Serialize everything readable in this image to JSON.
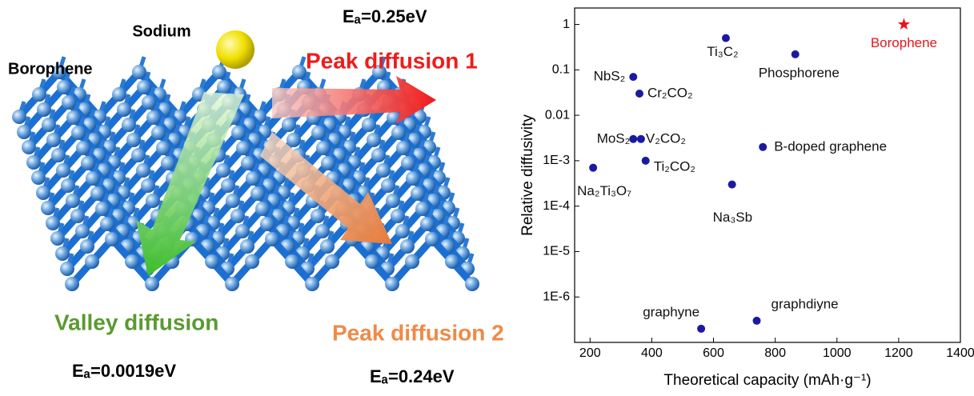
{
  "diagram": {
    "sodium": "Sodium",
    "borophene": "Borophene",
    "ea_peak1": "Eₐ=0.25eV",
    "peak1": "Peak diffusion 1",
    "valley": "Valley diffusion",
    "ea_valley": "Eₐ=0.0019eV",
    "peak2": "Peak diffusion 2",
    "ea_peak2": "Eₐ=0.24eV"
  },
  "chart_data": {
    "type": "scatter",
    "x_label": "Theoretical capacity (mAh·g⁻¹)",
    "y_label": "Relative diffusivity",
    "point_labels": [
      "Ti₃C₂",
      "Phosphorene",
      "Borophene",
      "NbS₂",
      "Cr₂CO₂",
      "MoS₂",
      "V₂CO₂",
      "B-doped graphene",
      "Ti₂CO₂",
      "Na₂Ti₃O₇",
      "Na₃Sb",
      "graphyne",
      "graphdiyne"
    ],
    "x": [
      640,
      865,
      1217,
      340,
      360,
      340,
      365,
      760,
      380,
      210,
      660,
      560,
      740
    ],
    "values": [
      0.5,
      0.22,
      1,
      0.07,
      0.03,
      0.003,
      0.003,
      0.002,
      0.001,
      0.0007,
      0.0003,
      2e-07,
      3e-07
    ],
    "colors": [
      "#1a1aa0",
      "#1a1aa0",
      "#e8141b",
      "#1a1aa0",
      "#1a1aa0",
      "#1a1aa0",
      "#1a1aa0",
      "#1a1aa0",
      "#1a1aa0",
      "#1a1aa0",
      "#1a1aa0",
      "#1a1aa0",
      "#1a1aa0"
    ],
    "xlim": [
      150,
      1400
    ],
    "xticks": [
      200,
      400,
      600,
      800,
      1000,
      1200,
      1400
    ],
    "ylim": [
      1e-07,
      2.3
    ],
    "y_scale": "log",
    "yticks": [
      1,
      0.1,
      0.01,
      {
        "value": 0.001,
        "label": "1E-3"
      },
      {
        "value": 0.0001,
        "label": "1E-4"
      },
      {
        "value": 1e-05,
        "label": "1E-5"
      },
      {
        "value": 1e-06,
        "label": "1E-6"
      }
    ]
  }
}
